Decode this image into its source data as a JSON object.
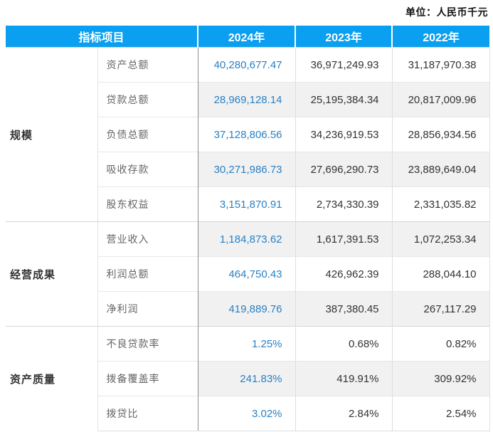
{
  "unit_label": "单位：人民币千元",
  "colors": {
    "header_bg": "#0a9ff0",
    "header_text": "#ffffff",
    "value_2024": "#2a80c4",
    "value_other": "#333333",
    "row_alt_bg": "#f1f1f1",
    "label_text": "#666666"
  },
  "table": {
    "header": {
      "indicator": "指标项目",
      "years": [
        "2024年",
        "2023年",
        "2022年"
      ]
    },
    "groups": [
      {
        "name": "规模",
        "rows": [
          {
            "label": "资产总额",
            "values": [
              "40,280,677.47",
              "36,971,249.93",
              "31,187,970.38"
            ]
          },
          {
            "label": "贷款总额",
            "values": [
              "28,969,128.14",
              "25,195,384.34",
              "20,817,009.96"
            ]
          },
          {
            "label": "负债总额",
            "values": [
              "37,128,806.56",
              "34,236,919.53",
              "28,856,934.56"
            ]
          },
          {
            "label": "吸收存款",
            "values": [
              "30,271,986.73",
              "27,696,290.73",
              "23,889,649.04"
            ]
          },
          {
            "label": "股东权益",
            "values": [
              "3,151,870.91",
              "2,734,330.39",
              "2,331,035.82"
            ]
          }
        ]
      },
      {
        "name": "经营成果",
        "rows": [
          {
            "label": "营业收入",
            "values": [
              "1,184,873.62",
              "1,617,391.53",
              "1,072,253.34"
            ]
          },
          {
            "label": "利润总额",
            "values": [
              "464,750.43",
              "426,962.39",
              "288,044.10"
            ]
          },
          {
            "label": "净利润",
            "values": [
              "419,889.76",
              "387,380.45",
              "267,117.29"
            ]
          }
        ]
      },
      {
        "name": "资产质量",
        "rows": [
          {
            "label": "不良贷款率",
            "values": [
              "1.25%",
              "0.68%",
              "0.82%"
            ]
          },
          {
            "label": "拨备覆盖率",
            "values": [
              "241.83%",
              "419.91%",
              "309.92%"
            ]
          },
          {
            "label": "拨贷比",
            "values": [
              "3.02%",
              "2.84%",
              "2.54%"
            ]
          }
        ]
      }
    ]
  },
  "chart_data": {
    "type": "table",
    "title": "",
    "unit_note": "单位：人民币千元",
    "columns": [
      "指标项目",
      "2024年",
      "2023年",
      "2022年"
    ],
    "rows": [
      {
        "group": "规模",
        "indicator": "资产总额",
        "unit": "千元",
        "values": [
          40280677.47,
          36971249.93,
          31187970.38
        ]
      },
      {
        "group": "规模",
        "indicator": "贷款总额",
        "unit": "千元",
        "values": [
          28969128.14,
          25195384.34,
          20817009.96
        ]
      },
      {
        "group": "规模",
        "indicator": "负债总额",
        "unit": "千元",
        "values": [
          37128806.56,
          34236919.53,
          28856934.56
        ]
      },
      {
        "group": "规模",
        "indicator": "吸收存款",
        "unit": "千元",
        "values": [
          30271986.73,
          27696290.73,
          23889649.04
        ]
      },
      {
        "group": "规模",
        "indicator": "股东权益",
        "unit": "千元",
        "values": [
          3151870.91,
          2734330.39,
          2331035.82
        ]
      },
      {
        "group": "经营成果",
        "indicator": "营业收入",
        "unit": "千元",
        "values": [
          1184873.62,
          1617391.53,
          1072253.34
        ]
      },
      {
        "group": "经营成果",
        "indicator": "利润总额",
        "unit": "千元",
        "values": [
          464750.43,
          426962.39,
          288044.1
        ]
      },
      {
        "group": "经营成果",
        "indicator": "净利润",
        "unit": "千元",
        "values": [
          419889.76,
          387380.45,
          267117.29
        ]
      },
      {
        "group": "资产质量",
        "indicator": "不良贷款率",
        "unit": "%",
        "values": [
          1.25,
          0.68,
          0.82
        ]
      },
      {
        "group": "资产质量",
        "indicator": "拨备覆盖率",
        "unit": "%",
        "values": [
          241.83,
          419.91,
          309.92
        ]
      },
      {
        "group": "资产质量",
        "indicator": "拨贷比",
        "unit": "%",
        "values": [
          3.02,
          2.84,
          2.54
        ]
      }
    ]
  }
}
